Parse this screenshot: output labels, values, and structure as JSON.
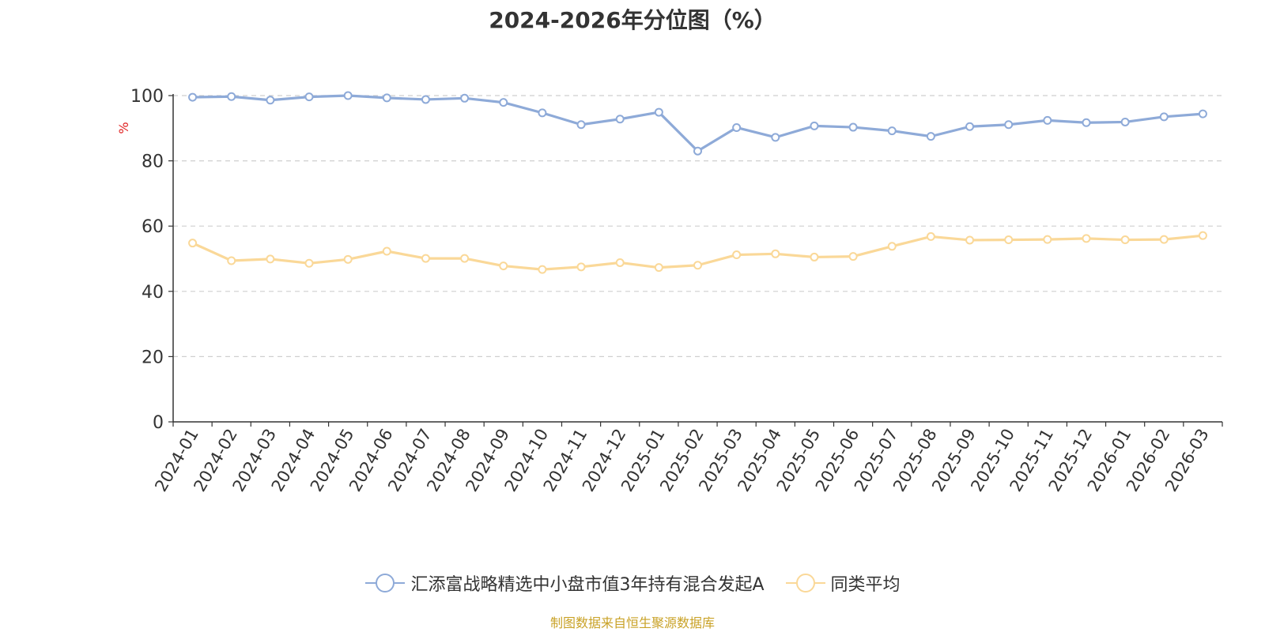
{
  "chart_data": {
    "type": "line",
    "title": "2024-2026年分位图（%）",
    "ylabel": "%",
    "ylim": [
      0,
      100
    ],
    "yticks": [
      0,
      20,
      40,
      60,
      80,
      100
    ],
    "grid": true,
    "legend_position": "bottom",
    "categories": [
      "2024-01",
      "2024-02",
      "2024-03",
      "2024-04",
      "2024-05",
      "2024-06",
      "2024-07",
      "2024-08",
      "2024-09",
      "2024-10",
      "2024-11",
      "2024-12",
      "2025-01",
      "2025-02",
      "2025-03",
      "2025-04",
      "2025-05",
      "2025-06",
      "2025-07",
      "2025-08",
      "2025-09",
      "2025-10",
      "2025-11",
      "2025-12",
      "2026-01",
      "2026-02",
      "2026-03"
    ],
    "series": [
      {
        "name": "汇添富战略精选中小盘市值3年持有混合发起A",
        "color": "#8eaad8",
        "values": [
          99.5,
          99.7,
          98.6,
          99.6,
          100.0,
          99.3,
          98.8,
          99.2,
          97.9,
          94.7,
          91.1,
          92.8,
          94.9,
          83.0,
          90.2,
          87.2,
          90.7,
          90.3,
          89.2,
          87.5,
          90.5,
          91.1,
          92.4,
          91.7,
          91.9,
          93.5,
          94.4
        ]
      },
      {
        "name": "同类平均",
        "color": "#fad898",
        "values": [
          54.8,
          49.4,
          49.9,
          48.6,
          49.8,
          52.3,
          50.1,
          50.1,
          47.8,
          46.7,
          47.5,
          48.8,
          47.3,
          48.0,
          51.2,
          51.5,
          50.5,
          50.7,
          53.8,
          56.8,
          55.7,
          55.8,
          55.9,
          56.2,
          55.8,
          55.9,
          57.1
        ]
      }
    ]
  },
  "footer": {
    "source": "制图数据来自恒生聚源数据库"
  }
}
